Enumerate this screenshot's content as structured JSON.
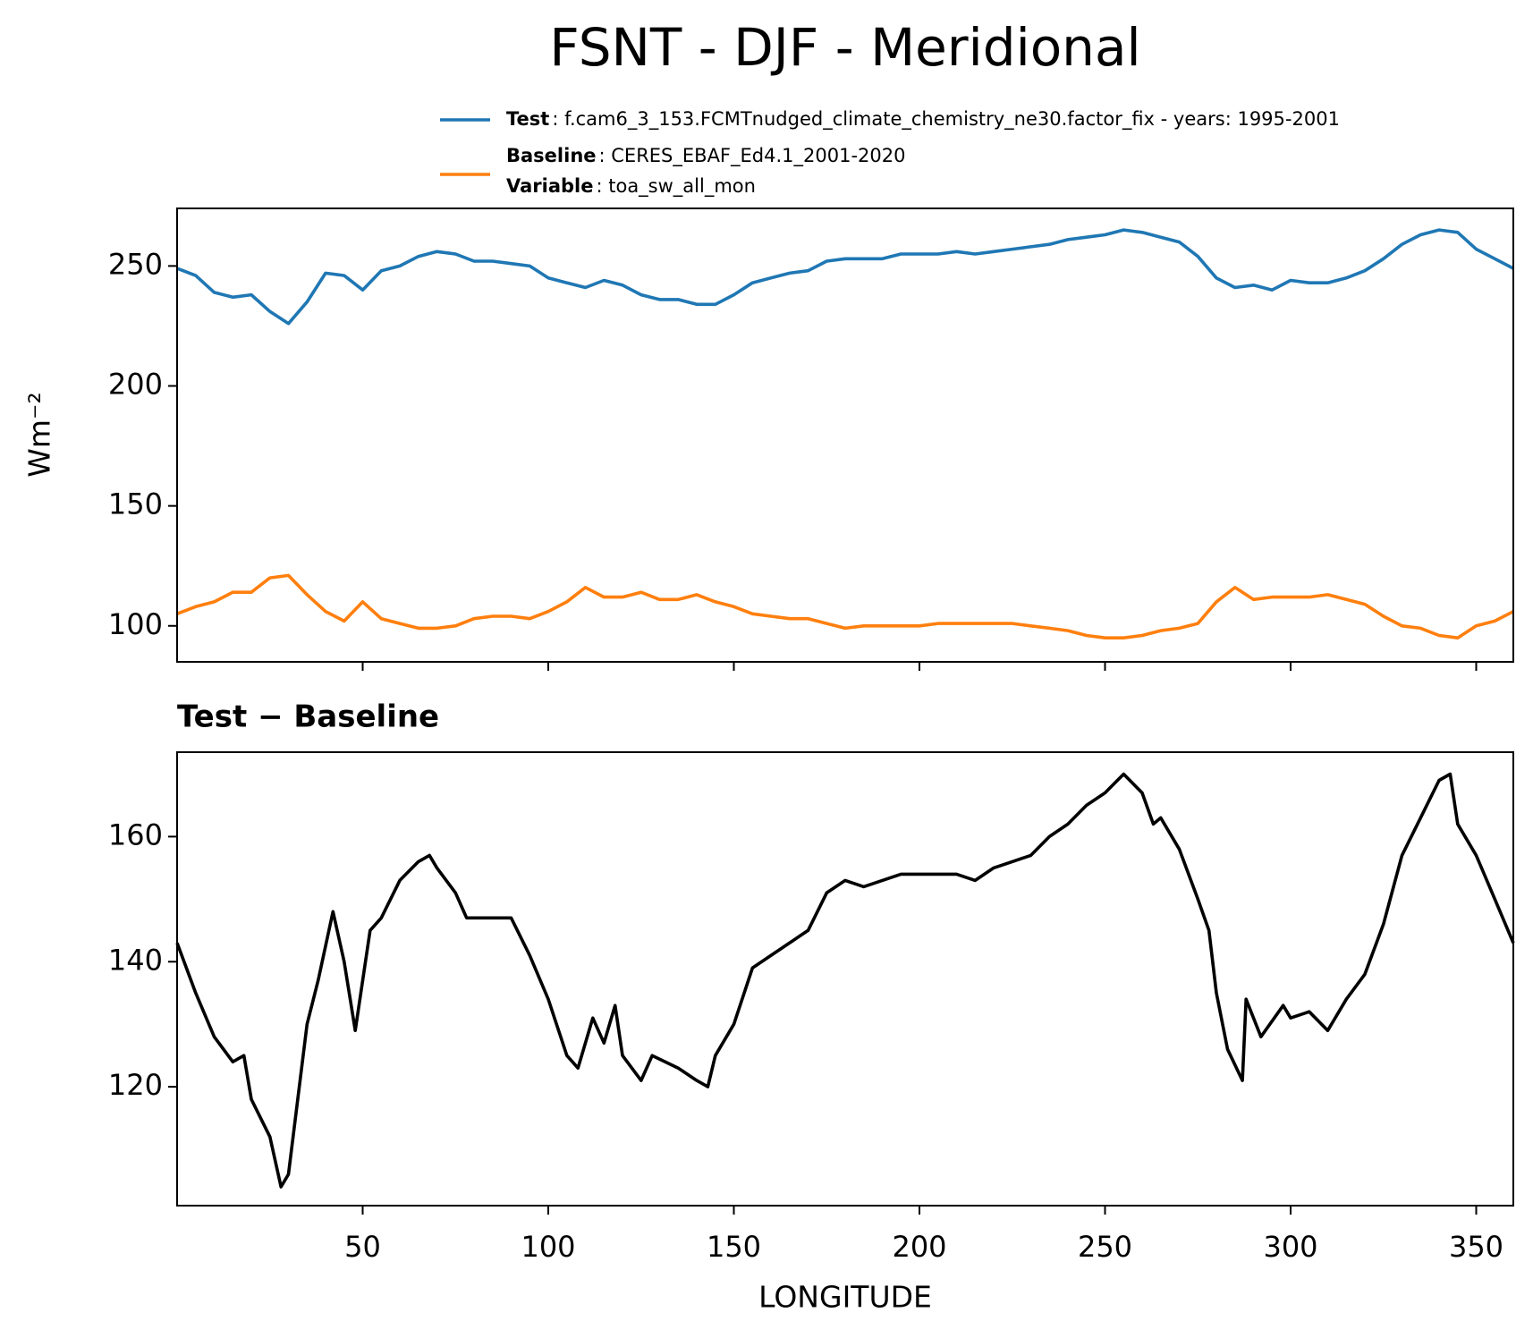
{
  "title": "FSNT - DJF - Meridional",
  "xlabel": "LONGITUDE",
  "chart_data": [
    {
      "type": "line",
      "ylabel": "Wm⁻²",
      "xlim": [
        0,
        360
      ],
      "xticks": [
        50,
        100,
        150,
        200,
        250,
        300,
        350
      ],
      "ylim": [
        85,
        274
      ],
      "yticks": [
        100,
        150,
        200,
        250
      ],
      "x": [
        0,
        5,
        10,
        15,
        20,
        25,
        30,
        35,
        40,
        45,
        50,
        55,
        60,
        65,
        70,
        75,
        80,
        85,
        90,
        95,
        100,
        105,
        110,
        115,
        120,
        125,
        130,
        135,
        140,
        145,
        150,
        155,
        160,
        165,
        170,
        175,
        180,
        185,
        190,
        195,
        200,
        205,
        210,
        215,
        220,
        225,
        230,
        235,
        240,
        245,
        250,
        255,
        260,
        265,
        270,
        275,
        280,
        285,
        290,
        295,
        300,
        305,
        310,
        315,
        320,
        325,
        330,
        335,
        340,
        345,
        350,
        355,
        360
      ],
      "series": [
        {
          "name": "Test",
          "description": ": f.cam6_3_153.FCMTnudged_climate_chemistry_ne30.factor_fix - years: 1995-2001",
          "color": "#1f77b4",
          "values": [
            249,
            246,
            239,
            237,
            238,
            231,
            226,
            235,
            247,
            246,
            240,
            248,
            250,
            254,
            256,
            255,
            252,
            252,
            251,
            250,
            245,
            243,
            241,
            244,
            242,
            238,
            236,
            236,
            234,
            234,
            238,
            243,
            245,
            247,
            248,
            252,
            253,
            253,
            253,
            255,
            255,
            255,
            256,
            255,
            256,
            257,
            258,
            259,
            261,
            262,
            263,
            265,
            264,
            262,
            260,
            254,
            245,
            241,
            242,
            240,
            244,
            243,
            243,
            245,
            248,
            253,
            259,
            263,
            265,
            264,
            257,
            253,
            249
          ]
        },
        {
          "name": "Baseline",
          "description": ": CERES_EBAF_Ed4.1_2001-2020",
          "variable": "Variable",
          "variable_description": ": toa_sw_all_mon",
          "color": "#ff7f0e",
          "values": [
            105,
            108,
            110,
            114,
            114,
            120,
            121,
            113,
            106,
            102,
            110,
            103,
            101,
            99,
            99,
            100,
            103,
            104,
            104,
            103,
            106,
            110,
            116,
            112,
            112,
            114,
            111,
            111,
            113,
            110,
            108,
            105,
            104,
            103,
            103,
            101,
            99,
            100,
            100,
            100,
            100,
            101,
            101,
            101,
            101,
            101,
            100,
            99,
            98,
            96,
            95,
            95,
            96,
            98,
            99,
            101,
            110,
            116,
            111,
            112,
            112,
            112,
            113,
            111,
            109,
            104,
            100,
            99,
            96,
            95,
            100,
            102,
            106
          ]
        }
      ]
    },
    {
      "type": "line",
      "title": "Test − Baseline",
      "xlim": [
        0,
        360
      ],
      "xticks": [
        50,
        100,
        150,
        200,
        250,
        300,
        350
      ],
      "ylim": [
        101,
        173.5
      ],
      "yticks": [
        120,
        140,
        160
      ],
      "x": [
        0,
        5,
        10,
        15,
        18,
        20,
        25,
        28,
        30,
        35,
        38,
        42,
        45,
        48,
        52,
        55,
        60,
        65,
        68,
        70,
        75,
        78,
        80,
        85,
        90,
        95,
        100,
        105,
        108,
        112,
        115,
        118,
        120,
        125,
        128,
        135,
        140,
        143,
        145,
        150,
        155,
        160,
        165,
        170,
        175,
        180,
        185,
        190,
        195,
        200,
        205,
        210,
        215,
        220,
        225,
        230,
        235,
        240,
        245,
        250,
        255,
        260,
        263,
        265,
        270,
        275,
        278,
        280,
        283,
        287,
        288,
        292,
        298,
        300,
        305,
        310,
        315,
        320,
        325,
        330,
        335,
        340,
        343,
        345,
        350,
        355,
        360
      ],
      "series": [
        {
          "color": "#000000",
          "values": [
            143,
            135,
            128,
            124,
            125,
            118,
            112,
            104,
            106,
            130,
            137,
            148,
            140,
            129,
            145,
            147,
            153,
            156,
            157,
            155,
            151,
            147,
            147,
            147,
            147,
            141,
            134,
            125,
            123,
            131,
            127,
            133,
            125,
            121,
            125,
            123,
            121,
            120,
            125,
            130,
            139,
            141,
            143,
            145,
            151,
            153,
            152,
            153,
            154,
            154,
            154,
            154,
            153,
            155,
            156,
            157,
            160,
            162,
            165,
            167,
            170,
            167,
            162,
            163,
            158,
            150,
            145,
            135,
            126,
            121,
            134,
            128,
            133,
            131,
            132,
            129,
            134,
            138,
            146,
            157,
            163,
            169,
            170,
            162,
            157,
            150,
            143
          ]
        }
      ]
    }
  ]
}
